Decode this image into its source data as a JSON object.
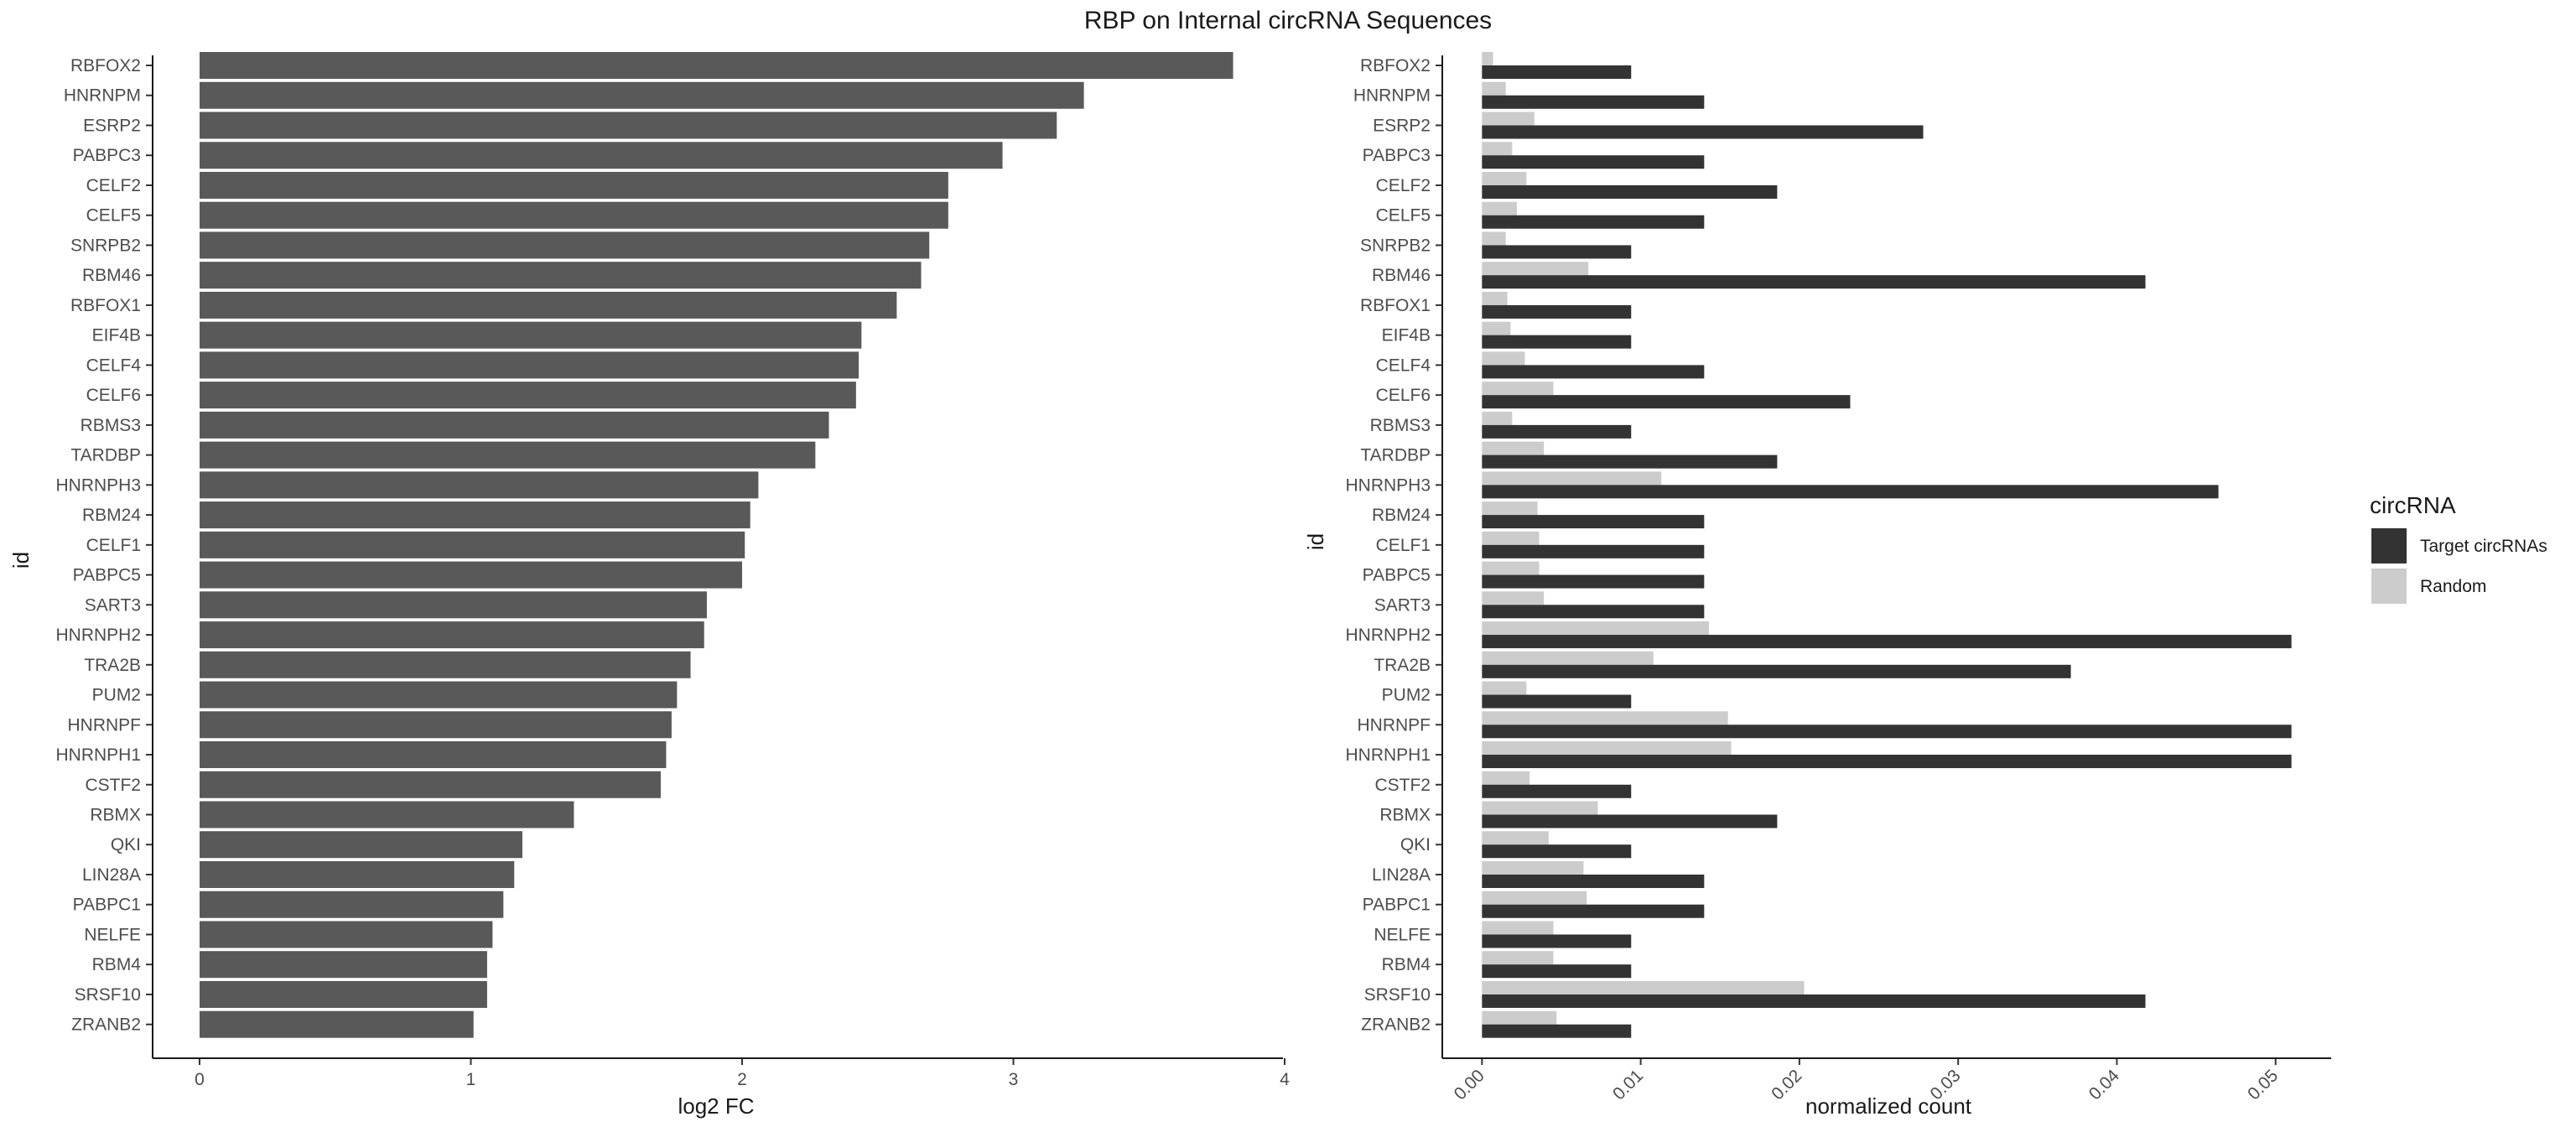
{
  "figure": {
    "title": "RBP on Internal circRNA Sequences"
  },
  "chart_data": [
    {
      "type": "bar",
      "orientation": "horizontal",
      "title": "",
      "xlabel": "log2 FC",
      "ylabel": "id",
      "xlim": [
        0,
        4
      ],
      "xticks": [
        "0",
        "1",
        "2",
        "3",
        "4"
      ],
      "grid": false,
      "bar_color": "#595959",
      "categories": [
        "RBFOX2",
        "HNRNPM",
        "ESRP2",
        "PABPC3",
        "CELF2",
        "CELF5",
        "SNRPB2",
        "RBM46",
        "RBFOX1",
        "EIF4B",
        "CELF4",
        "CELF6",
        "RBMS3",
        "TARDBP",
        "HNRNPH3",
        "RBM24",
        "CELF1",
        "PABPC5",
        "SART3",
        "HNRNPH2",
        "TRA2B",
        "PUM2",
        "HNRNPF",
        "HNRNPH1",
        "CSTF2",
        "RBMX",
        "QKI",
        "LIN28A",
        "PABPC1",
        "NELFE",
        "RBM4",
        "SRSF10",
        "ZRANB2"
      ],
      "values": [
        3.81,
        3.26,
        3.16,
        2.96,
        2.76,
        2.76,
        2.69,
        2.66,
        2.57,
        2.44,
        2.43,
        2.42,
        2.32,
        2.27,
        2.06,
        2.03,
        2.01,
        2.0,
        1.87,
        1.86,
        1.81,
        1.76,
        1.74,
        1.72,
        1.7,
        1.38,
        1.19,
        1.16,
        1.12,
        1.08,
        1.06,
        1.06,
        1.01
      ]
    },
    {
      "type": "bar",
      "orientation": "horizontal",
      "title": "",
      "xlabel": "normalized count",
      "ylabel": "id",
      "xlim": [
        -0.0025,
        0.0535
      ],
      "xticks": [
        "0.00",
        "0.01",
        "0.02",
        "0.03",
        "0.04",
        "0.05"
      ],
      "grid": false,
      "legend": {
        "title": "circRNA",
        "placement": "right"
      },
      "categories": [
        "RBFOX2",
        "HNRNPM",
        "ESRP2",
        "PABPC3",
        "CELF2",
        "CELF5",
        "SNRPB2",
        "RBM46",
        "RBFOX1",
        "EIF4B",
        "CELF4",
        "CELF6",
        "RBMS3",
        "TARDBP",
        "HNRNPH3",
        "RBM24",
        "CELF1",
        "PABPC5",
        "SART3",
        "HNRNPH2",
        "TRA2B",
        "PUM2",
        "HNRNPF",
        "HNRNPH1",
        "CSTF2",
        "RBMX",
        "QKI",
        "LIN28A",
        "PABPC1",
        "NELFE",
        "RBM4",
        "SRSF10",
        "ZRANB2"
      ],
      "series": [
        {
          "name": "Target circRNAs",
          "color": "#333333",
          "values": [
            0.0094,
            0.014,
            0.0278,
            0.014,
            0.0186,
            0.014,
            0.0094,
            0.0418,
            0.0094,
            0.0094,
            0.014,
            0.0232,
            0.0094,
            0.0186,
            0.0464,
            0.014,
            0.014,
            0.014,
            0.014,
            0.051,
            0.0371,
            0.0094,
            0.051,
            0.051,
            0.0094,
            0.0186,
            0.0094,
            0.014,
            0.014,
            0.0094,
            0.0094,
            0.0418,
            0.0094
          ]
        },
        {
          "name": "Random",
          "color": "#cccccc",
          "values": [
            0.0007,
            0.0015,
            0.0033,
            0.0019,
            0.0028,
            0.0022,
            0.0015,
            0.0067,
            0.0016,
            0.0018,
            0.0027,
            0.0045,
            0.0019,
            0.0039,
            0.0113,
            0.0035,
            0.0036,
            0.0036,
            0.0039,
            0.0143,
            0.0108,
            0.0028,
            0.0155,
            0.0157,
            0.003,
            0.0073,
            0.0042,
            0.0064,
            0.0066,
            0.0045,
            0.0045,
            0.0203,
            0.0047
          ]
        }
      ]
    }
  ]
}
